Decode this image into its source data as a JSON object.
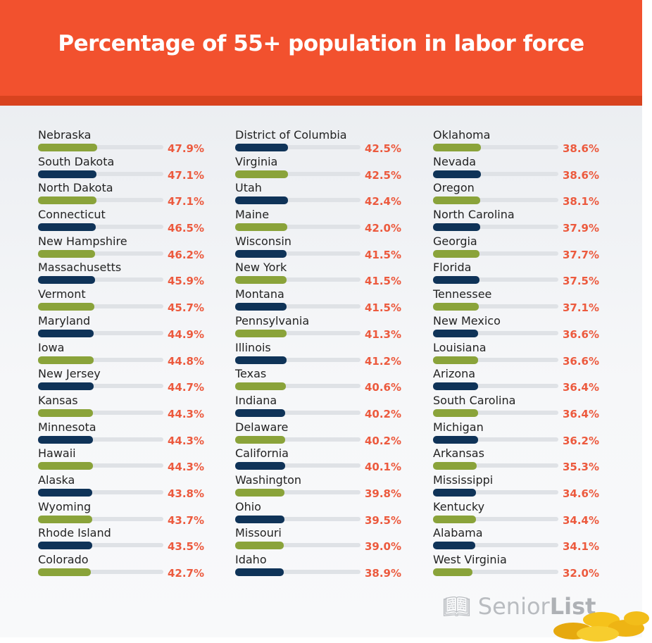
{
  "title": "Percentage of 55+ population in labor force",
  "logo": {
    "prefix": "Senior",
    "bold": "List"
  },
  "colors": {
    "green": "#8aa33a",
    "navy": "#0f3358",
    "value": "#ec5a3e",
    "header": "#f2512e"
  },
  "chart_data": {
    "type": "bar",
    "title": "Percentage of 55+ population in labor force",
    "unit": "%",
    "xlim": [
      0,
      100
    ],
    "categories": [
      "Nebraska",
      "South Dakota",
      "North Dakota",
      "Connecticut",
      "New Hampshire",
      "Massachusetts",
      "Vermont",
      "Maryland",
      "Iowa",
      "New Jersey",
      "Kansas",
      "Minnesota",
      "Hawaii",
      "Alaska",
      "Wyoming",
      "Rhode Island",
      "Colorado",
      "District of Columbia",
      "Virginia",
      "Utah",
      "Maine",
      "Wisconsin",
      "New York",
      "Montana",
      "Pennsylvania",
      "Illinois",
      "Texas",
      "Indiana",
      "Delaware",
      "California",
      "Washington",
      "Ohio",
      "Missouri",
      "Idaho",
      "Oklahoma",
      "Nevada",
      "Oregon",
      "North Carolina",
      "Georgia",
      "Florida",
      "Tennessee",
      "New Mexico",
      "Louisiana",
      "Arizona",
      "South Carolina",
      "Michigan",
      "Arkansas",
      "Mississippi",
      "Kentucky",
      "Alabama",
      "West Virginia"
    ],
    "values": [
      47.9,
      47.1,
      47.1,
      46.5,
      46.2,
      45.9,
      45.7,
      44.9,
      44.8,
      44.7,
      44.3,
      44.3,
      44.3,
      43.8,
      43.7,
      43.5,
      42.7,
      42.5,
      42.5,
      42.4,
      42.0,
      41.5,
      41.5,
      41.5,
      41.3,
      41.2,
      40.6,
      40.2,
      40.2,
      40.1,
      39.8,
      39.5,
      39.0,
      38.9,
      38.6,
      38.6,
      38.1,
      37.9,
      37.7,
      37.5,
      37.1,
      36.6,
      36.6,
      36.4,
      36.4,
      36.2,
      35.3,
      34.6,
      34.4,
      34.1,
      32.0
    ]
  }
}
